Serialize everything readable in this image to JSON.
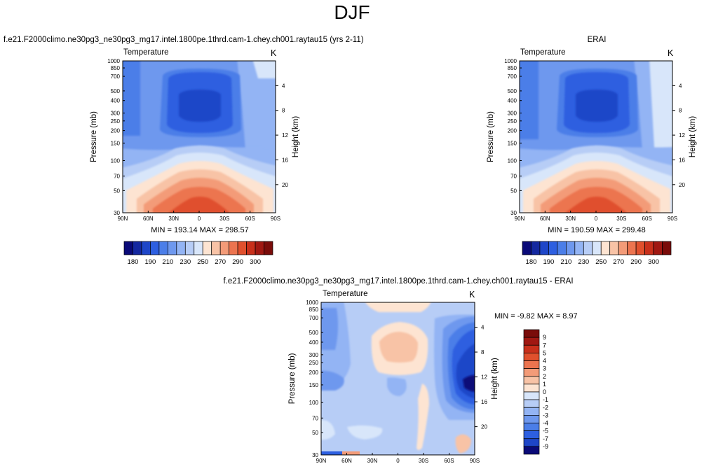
{
  "page": {
    "title": "DJF"
  },
  "chart_data": [
    {
      "type": "heatmap",
      "panel": "model",
      "title": "f.e21.F2000climo.ne30pg3_ne30pg3_mg17.intel.1800pe.1thrd.cam-1.chey.ch001.raytau15 (yrs 2-11)",
      "left_label": "Temperature",
      "right_label": "K",
      "xlabel": "",
      "ylabel": "Pressure (mb)",
      "ylabel_right": "Height (km)",
      "x_ticks": [
        "90N",
        "60N",
        "30N",
        "0",
        "30S",
        "60S",
        "90S"
      ],
      "y_ticks": [
        "30",
        "50",
        "70",
        "100",
        "150",
        "200",
        "250",
        "300",
        "400",
        "500",
        "700",
        "850",
        "1000"
      ],
      "y_right_ticks": [
        "20",
        "16",
        "12",
        "8",
        "4"
      ],
      "ylim": [
        1000,
        30
      ],
      "y_scale": "log",
      "stats": "MIN = 193.14   MAX = 298.57",
      "min": 193.14,
      "max": 298.57
    },
    {
      "type": "heatmap",
      "panel": "obs",
      "title": "ERAI",
      "left_label": "Temperature",
      "right_label": "K",
      "xlabel": "",
      "ylabel": "Pressure (mb)",
      "ylabel_right": "Height (km)",
      "x_ticks": [
        "90N",
        "60N",
        "30N",
        "0",
        "30S",
        "60S",
        "90S"
      ],
      "y_ticks": [
        "30",
        "50",
        "70",
        "100",
        "150",
        "200",
        "250",
        "300",
        "400",
        "500",
        "700",
        "850",
        "1000"
      ],
      "y_right_ticks": [
        "20",
        "16",
        "12",
        "8",
        "4"
      ],
      "ylim": [
        1000,
        30
      ],
      "y_scale": "log",
      "stats": "MIN = 190.59   MAX = 299.48",
      "min": 190.59,
      "max": 299.48
    },
    {
      "type": "heatmap",
      "panel": "diff",
      "title": "f.e21.F2000climo.ne30pg3_ne30pg3_mg17.intel.1800pe.1thrd.cam-1.chey.ch001.raytau15 - ERAI",
      "left_label": "Temperature",
      "right_label": "K",
      "xlabel": "",
      "ylabel": "Pressure (mb)",
      "ylabel_right": "Height (km)",
      "x_ticks": [
        "90N",
        "60N",
        "30N",
        "0",
        "30S",
        "60S",
        "90S"
      ],
      "y_ticks": [
        "30",
        "50",
        "70",
        "100",
        "150",
        "200",
        "250",
        "300",
        "400",
        "500",
        "700",
        "850",
        "1000"
      ],
      "y_right_ticks": [
        "20",
        "16",
        "12",
        "8",
        "4"
      ],
      "ylim": [
        1000,
        30
      ],
      "y_scale": "log",
      "stats": "MIN =  -9.82   MAX =   8.97",
      "min": -9.82,
      "max": 8.97
    }
  ],
  "colorbars": {
    "absolute": {
      "orientation": "horizontal",
      "labels": [
        "180",
        "190",
        "210",
        "230",
        "250",
        "270",
        "290",
        "300"
      ],
      "colors": [
        "#0a0a78",
        "#1428a0",
        "#1e46c8",
        "#2d5fe0",
        "#4b7ee8",
        "#6e98ee",
        "#93b4f4",
        "#b7cdf6",
        "#d8e6fa",
        "#fde4d2",
        "#f8c3a6",
        "#f39b78",
        "#ec744f",
        "#e0502d",
        "#c8301b",
        "#a01812",
        "#7a0c0a"
      ]
    },
    "difference": {
      "orientation": "vertical",
      "labels": [
        "9",
        "7",
        "5",
        "4",
        "3",
        "2",
        "1",
        "0",
        "-1",
        "-2",
        "-3",
        "-4",
        "-5",
        "-7",
        "-9"
      ],
      "colors": [
        "#7a0c0a",
        "#a01812",
        "#c8301b",
        "#e0502d",
        "#ec744f",
        "#f39b78",
        "#f8c3a6",
        "#fde4d2",
        "#d8e6fa",
        "#b7cdf6",
        "#93b4f4",
        "#6e98ee",
        "#4b7ee8",
        "#2d5fe0",
        "#1e46c8",
        "#0a0a78"
      ]
    }
  }
}
